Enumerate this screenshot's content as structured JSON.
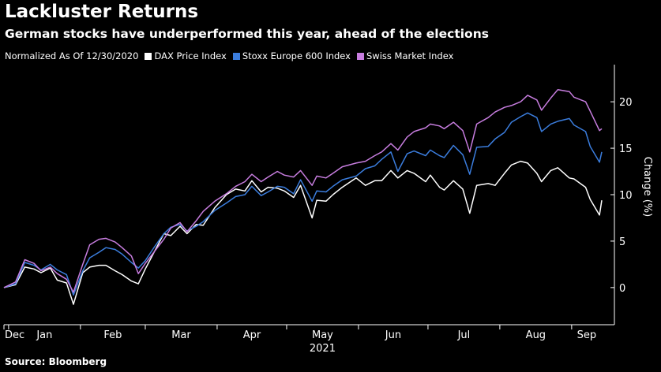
{
  "header": {
    "title": "Lackluster Returns",
    "subtitle": "German stocks have underperformed this year, ahead of the elections",
    "normalized_note": "Normalized As Of 12/30/2020"
  },
  "source": "Source: Bloomberg",
  "colors": {
    "background": "#000000",
    "dax": "#ffffff",
    "stoxx": "#3b7ddd",
    "smi": "#c77ddf",
    "axis": "#ffffff"
  },
  "chart_data": {
    "type": "line",
    "ylabel": "Change (%)",
    "ylim": [
      -4,
      24
    ],
    "yticks": [
      0,
      5,
      10,
      15,
      20
    ],
    "x_range": [
      "2020-12-30",
      "2021-09-14"
    ],
    "month_ticks": [
      {
        "date": "2020-12-01",
        "label": "Dec"
      },
      {
        "date": "2021-01-01",
        "label": "Jan"
      },
      {
        "date": "2021-02-01",
        "label": "Feb"
      },
      {
        "date": "2021-03-01",
        "label": "Mar"
      },
      {
        "date": "2021-04-01",
        "label": "Apr"
      },
      {
        "date": "2021-05-01",
        "label": "May"
      },
      {
        "date": "2021-06-01",
        "label": "Jun"
      },
      {
        "date": "2021-07-01",
        "label": "Jul"
      },
      {
        "date": "2021-08-01",
        "label": "Aug"
      },
      {
        "date": "2021-09-01",
        "label": "Sep"
      }
    ],
    "year_label": "2021",
    "series": [
      {
        "name": "DAX Price Index",
        "color": "#ffffff",
        "points": [
          [
            "2020-12-30",
            0
          ],
          [
            "2021-01-04",
            0.3
          ],
          [
            "2021-01-08",
            2.2
          ],
          [
            "2021-01-12",
            2.0
          ],
          [
            "2021-01-15",
            1.6
          ],
          [
            "2021-01-19",
            2.1
          ],
          [
            "2021-01-22",
            0.8
          ],
          [
            "2021-01-26",
            0.5
          ],
          [
            "2021-01-29",
            -1.8
          ],
          [
            "2021-02-02",
            1.6
          ],
          [
            "2021-02-05",
            2.2
          ],
          [
            "2021-02-09",
            2.4
          ],
          [
            "2021-02-12",
            2.4
          ],
          [
            "2021-02-16",
            1.8
          ],
          [
            "2021-02-19",
            1.4
          ],
          [
            "2021-02-23",
            0.7
          ],
          [
            "2021-02-26",
            0.4
          ],
          [
            "2021-03-01",
            2.0
          ],
          [
            "2021-03-05",
            3.9
          ],
          [
            "2021-03-09",
            5.8
          ],
          [
            "2021-03-12",
            5.6
          ],
          [
            "2021-03-16",
            6.6
          ],
          [
            "2021-03-19",
            5.8
          ],
          [
            "2021-03-23",
            6.8
          ],
          [
            "2021-03-26",
            6.7
          ],
          [
            "2021-03-31",
            8.6
          ],
          [
            "2021-04-05",
            10.0
          ],
          [
            "2021-04-09",
            10.6
          ],
          [
            "2021-04-13",
            10.4
          ],
          [
            "2021-04-16",
            11.5
          ],
          [
            "2021-04-20",
            10.3
          ],
          [
            "2021-04-23",
            10.8
          ],
          [
            "2021-04-27",
            10.7
          ],
          [
            "2021-04-30",
            10.4
          ],
          [
            "2021-05-04",
            9.7
          ],
          [
            "2021-05-07",
            11.0
          ],
          [
            "2021-05-12",
            7.5
          ],
          [
            "2021-05-14",
            9.4
          ],
          [
            "2021-05-18",
            9.3
          ],
          [
            "2021-05-21",
            10.0
          ],
          [
            "2021-05-25",
            10.8
          ],
          [
            "2021-05-31",
            11.8
          ],
          [
            "2021-06-04",
            11.0
          ],
          [
            "2021-06-08",
            11.5
          ],
          [
            "2021-06-11",
            11.5
          ],
          [
            "2021-06-15",
            12.6
          ],
          [
            "2021-06-18",
            11.8
          ],
          [
            "2021-06-22",
            12.6
          ],
          [
            "2021-06-25",
            12.3
          ],
          [
            "2021-06-30",
            11.4
          ],
          [
            "2021-07-02",
            12.1
          ],
          [
            "2021-07-06",
            10.8
          ],
          [
            "2021-07-08",
            10.5
          ],
          [
            "2021-07-12",
            11.5
          ],
          [
            "2021-07-16",
            10.6
          ],
          [
            "2021-07-19",
            8.0
          ],
          [
            "2021-07-22",
            11.0
          ],
          [
            "2021-07-27",
            11.2
          ],
          [
            "2021-07-30",
            11.0
          ],
          [
            "2021-08-03",
            12.3
          ],
          [
            "2021-08-06",
            13.2
          ],
          [
            "2021-08-10",
            13.6
          ],
          [
            "2021-08-13",
            13.4
          ],
          [
            "2021-08-17",
            12.3
          ],
          [
            "2021-08-19",
            11.4
          ],
          [
            "2021-08-23",
            12.6
          ],
          [
            "2021-08-26",
            12.9
          ],
          [
            "2021-08-31",
            11.8
          ],
          [
            "2021-09-02",
            11.7
          ],
          [
            "2021-09-07",
            10.8
          ],
          [
            "2021-09-09",
            9.5
          ],
          [
            "2021-09-13",
            7.8
          ],
          [
            "2021-09-14",
            9.4
          ]
        ]
      },
      {
        "name": "Stoxx Europe 600 Index",
        "color": "#3b7ddd",
        "points": [
          [
            "2020-12-30",
            0
          ],
          [
            "2021-01-04",
            0.4
          ],
          [
            "2021-01-08",
            2.7
          ],
          [
            "2021-01-12",
            2.4
          ],
          [
            "2021-01-15",
            1.9
          ],
          [
            "2021-01-19",
            2.5
          ],
          [
            "2021-01-22",
            1.9
          ],
          [
            "2021-01-26",
            1.4
          ],
          [
            "2021-01-29",
            -0.8
          ],
          [
            "2021-02-02",
            1.8
          ],
          [
            "2021-02-05",
            3.2
          ],
          [
            "2021-02-09",
            3.8
          ],
          [
            "2021-02-12",
            4.3
          ],
          [
            "2021-02-16",
            4.1
          ],
          [
            "2021-02-19",
            3.6
          ],
          [
            "2021-02-23",
            2.7
          ],
          [
            "2021-02-26",
            2.1
          ],
          [
            "2021-03-01",
            2.9
          ],
          [
            "2021-03-05",
            4.4
          ],
          [
            "2021-03-09",
            5.8
          ],
          [
            "2021-03-12",
            6.5
          ],
          [
            "2021-03-16",
            6.8
          ],
          [
            "2021-03-19",
            6.1
          ],
          [
            "2021-03-23",
            6.6
          ],
          [
            "2021-03-26",
            7.1
          ],
          [
            "2021-03-31",
            8.3
          ],
          [
            "2021-04-05",
            9.1
          ],
          [
            "2021-04-09",
            9.8
          ],
          [
            "2021-04-13",
            10.0
          ],
          [
            "2021-04-16",
            10.9
          ],
          [
            "2021-04-20",
            9.9
          ],
          [
            "2021-04-23",
            10.3
          ],
          [
            "2021-04-27",
            10.9
          ],
          [
            "2021-04-30",
            10.8
          ],
          [
            "2021-05-04",
            10.1
          ],
          [
            "2021-05-07",
            11.6
          ],
          [
            "2021-05-12",
            9.3
          ],
          [
            "2021-05-14",
            10.4
          ],
          [
            "2021-05-18",
            10.3
          ],
          [
            "2021-05-21",
            10.9
          ],
          [
            "2021-05-25",
            11.6
          ],
          [
            "2021-05-31",
            12.0
          ],
          [
            "2021-06-04",
            12.8
          ],
          [
            "2021-06-08",
            13.1
          ],
          [
            "2021-06-11",
            13.8
          ],
          [
            "2021-06-15",
            14.6
          ],
          [
            "2021-06-18",
            12.5
          ],
          [
            "2021-06-22",
            14.4
          ],
          [
            "2021-06-25",
            14.7
          ],
          [
            "2021-06-30",
            14.2
          ],
          [
            "2021-07-02",
            14.8
          ],
          [
            "2021-07-06",
            14.2
          ],
          [
            "2021-07-08",
            14.0
          ],
          [
            "2021-07-12",
            15.3
          ],
          [
            "2021-07-16",
            14.3
          ],
          [
            "2021-07-19",
            12.2
          ],
          [
            "2021-07-22",
            15.1
          ],
          [
            "2021-07-27",
            15.2
          ],
          [
            "2021-07-30",
            16.0
          ],
          [
            "2021-08-03",
            16.7
          ],
          [
            "2021-08-06",
            17.8
          ],
          [
            "2021-08-10",
            18.4
          ],
          [
            "2021-08-13",
            18.8
          ],
          [
            "2021-08-17",
            18.3
          ],
          [
            "2021-08-19",
            16.8
          ],
          [
            "2021-08-23",
            17.6
          ],
          [
            "2021-08-26",
            17.9
          ],
          [
            "2021-08-31",
            18.2
          ],
          [
            "2021-09-02",
            17.5
          ],
          [
            "2021-09-07",
            16.8
          ],
          [
            "2021-09-09",
            15.2
          ],
          [
            "2021-09-13",
            13.5
          ],
          [
            "2021-09-14",
            14.6
          ]
        ]
      },
      {
        "name": "Swiss Market Index",
        "color": "#c77ddf",
        "points": [
          [
            "2020-12-30",
            0
          ],
          [
            "2021-01-04",
            0.6
          ],
          [
            "2021-01-08",
            3.0
          ],
          [
            "2021-01-12",
            2.6
          ],
          [
            "2021-01-15",
            1.8
          ],
          [
            "2021-01-19",
            2.2
          ],
          [
            "2021-01-22",
            1.5
          ],
          [
            "2021-01-26",
            0.9
          ],
          [
            "2021-01-29",
            -0.5
          ],
          [
            "2021-02-02",
            2.5
          ],
          [
            "2021-02-05",
            4.6
          ],
          [
            "2021-02-09",
            5.2
          ],
          [
            "2021-02-12",
            5.3
          ],
          [
            "2021-02-16",
            4.9
          ],
          [
            "2021-02-19",
            4.3
          ],
          [
            "2021-02-23",
            3.4
          ],
          [
            "2021-02-26",
            1.5
          ],
          [
            "2021-03-01",
            2.6
          ],
          [
            "2021-03-05",
            3.9
          ],
          [
            "2021-03-09",
            5.2
          ],
          [
            "2021-03-12",
            6.4
          ],
          [
            "2021-03-16",
            7.0
          ],
          [
            "2021-03-19",
            6.0
          ],
          [
            "2021-03-23",
            7.2
          ],
          [
            "2021-03-26",
            8.2
          ],
          [
            "2021-03-31",
            9.3
          ],
          [
            "2021-04-05",
            10.1
          ],
          [
            "2021-04-09",
            10.9
          ],
          [
            "2021-04-13",
            11.4
          ],
          [
            "2021-04-16",
            12.2
          ],
          [
            "2021-04-20",
            11.4
          ],
          [
            "2021-04-23",
            11.9
          ],
          [
            "2021-04-27",
            12.5
          ],
          [
            "2021-04-30",
            12.1
          ],
          [
            "2021-05-04",
            11.9
          ],
          [
            "2021-05-07",
            12.6
          ],
          [
            "2021-05-12",
            11.0
          ],
          [
            "2021-05-14",
            12.0
          ],
          [
            "2021-05-18",
            11.8
          ],
          [
            "2021-05-21",
            12.3
          ],
          [
            "2021-05-25",
            13.0
          ],
          [
            "2021-05-31",
            13.4
          ],
          [
            "2021-06-04",
            13.6
          ],
          [
            "2021-06-08",
            14.2
          ],
          [
            "2021-06-11",
            14.6
          ],
          [
            "2021-06-15",
            15.5
          ],
          [
            "2021-06-18",
            14.8
          ],
          [
            "2021-06-22",
            16.2
          ],
          [
            "2021-06-25",
            16.8
          ],
          [
            "2021-06-30",
            17.2
          ],
          [
            "2021-07-02",
            17.6
          ],
          [
            "2021-07-06",
            17.4
          ],
          [
            "2021-07-08",
            17.1
          ],
          [
            "2021-07-12",
            17.8
          ],
          [
            "2021-07-16",
            16.9
          ],
          [
            "2021-07-19",
            14.6
          ],
          [
            "2021-07-22",
            17.6
          ],
          [
            "2021-07-27",
            18.3
          ],
          [
            "2021-07-30",
            18.9
          ],
          [
            "2021-08-03",
            19.4
          ],
          [
            "2021-08-06",
            19.6
          ],
          [
            "2021-08-10",
            20.0
          ],
          [
            "2021-08-13",
            20.7
          ],
          [
            "2021-08-17",
            20.2
          ],
          [
            "2021-08-19",
            19.1
          ],
          [
            "2021-08-23",
            20.4
          ],
          [
            "2021-08-26",
            21.3
          ],
          [
            "2021-08-31",
            21.1
          ],
          [
            "2021-09-02",
            20.5
          ],
          [
            "2021-09-07",
            20.0
          ],
          [
            "2021-09-09",
            19.0
          ],
          [
            "2021-09-13",
            16.9
          ],
          [
            "2021-09-14",
            17.1
          ]
        ]
      }
    ]
  }
}
